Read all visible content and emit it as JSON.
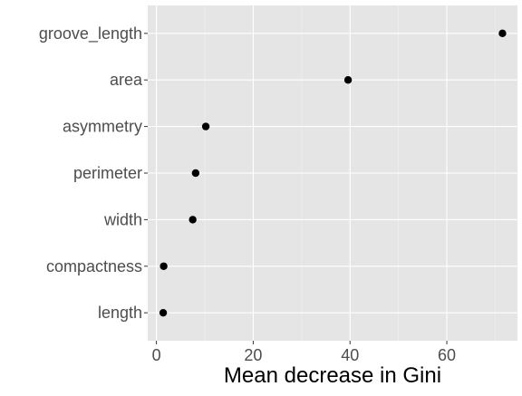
{
  "chart_data": {
    "type": "scatter",
    "title": "",
    "xlabel": "Mean decrease in Gini",
    "ylabel": "",
    "xlim": [
      -1.8,
      74.6
    ],
    "x_ticks": [
      0,
      20,
      40,
      60
    ],
    "x_tick_labels": [
      "0",
      "20",
      "40",
      "60"
    ],
    "categories": [
      "groove_length",
      "area",
      "asymmetry",
      "perimeter",
      "width",
      "compactness",
      "length"
    ],
    "values": [
      71.5,
      39.6,
      10.2,
      8.1,
      7.5,
      1.5,
      1.4
    ],
    "grid": true,
    "legend": "none",
    "colors": {
      "panel_background": "#e5e5e5",
      "major_grid": "#ffffff",
      "minor_grid": "#f2f2f2",
      "point": "#000000",
      "tick_text": "#4d4d4d",
      "axis_title": "#000000"
    }
  }
}
